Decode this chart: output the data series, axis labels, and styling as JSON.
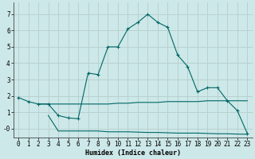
{
  "xlabel": "Humidex (Indice chaleur)",
  "bg_color": "#cde8e8",
  "grid_color": "#b8d0d0",
  "line_color": "#006666",
  "xlim": [
    -0.5,
    23.5
  ],
  "ylim": [
    -0.55,
    7.7
  ],
  "xticks": [
    0,
    1,
    2,
    3,
    4,
    5,
    6,
    7,
    8,
    9,
    10,
    11,
    12,
    13,
    14,
    15,
    16,
    17,
    18,
    19,
    20,
    21,
    22,
    23
  ],
  "yticks": [
    0,
    1,
    2,
    3,
    4,
    5,
    6,
    7
  ],
  "ytick_labels": [
    "-0",
    "1",
    "2",
    "3",
    "4",
    "5",
    "6",
    "7"
  ],
  "main_x": [
    0,
    1,
    2,
    3,
    4,
    5,
    6,
    7,
    8,
    9,
    10,
    11,
    12,
    13,
    14,
    15,
    16,
    17,
    18,
    19,
    20,
    21,
    22,
    23
  ],
  "main_y": [
    1.9,
    1.65,
    1.5,
    1.5,
    0.8,
    0.65,
    0.6,
    3.4,
    3.3,
    5.0,
    5.0,
    6.1,
    6.5,
    7.0,
    6.5,
    6.2,
    4.5,
    3.8,
    2.25,
    2.5,
    2.5,
    1.7,
    1.1,
    -0.3
  ],
  "upper_flat_x": [
    2,
    3,
    4,
    5,
    6,
    7,
    8,
    9,
    10,
    11,
    12,
    13,
    14,
    15,
    16,
    17,
    18,
    19,
    20,
    21,
    22,
    23
  ],
  "upper_flat_y": [
    1.5,
    1.5,
    1.5,
    1.5,
    1.5,
    1.5,
    1.5,
    1.5,
    1.55,
    1.55,
    1.6,
    1.6,
    1.6,
    1.65,
    1.65,
    1.65,
    1.65,
    1.7,
    1.7,
    1.7,
    1.7,
    1.7
  ],
  "lower_flat_x": [
    3,
    4,
    5,
    6,
    7,
    8,
    9,
    10,
    11,
    12,
    13,
    14,
    15,
    16,
    17,
    18,
    19,
    20,
    21,
    22,
    23
  ],
  "lower_flat_y": [
    0.8,
    -0.15,
    -0.15,
    -0.15,
    -0.15,
    -0.15,
    -0.2,
    -0.2,
    -0.2,
    -0.22,
    -0.24,
    -0.24,
    -0.26,
    -0.28,
    -0.28,
    -0.28,
    -0.3,
    -0.32,
    -0.32,
    -0.34,
    -0.35
  ]
}
